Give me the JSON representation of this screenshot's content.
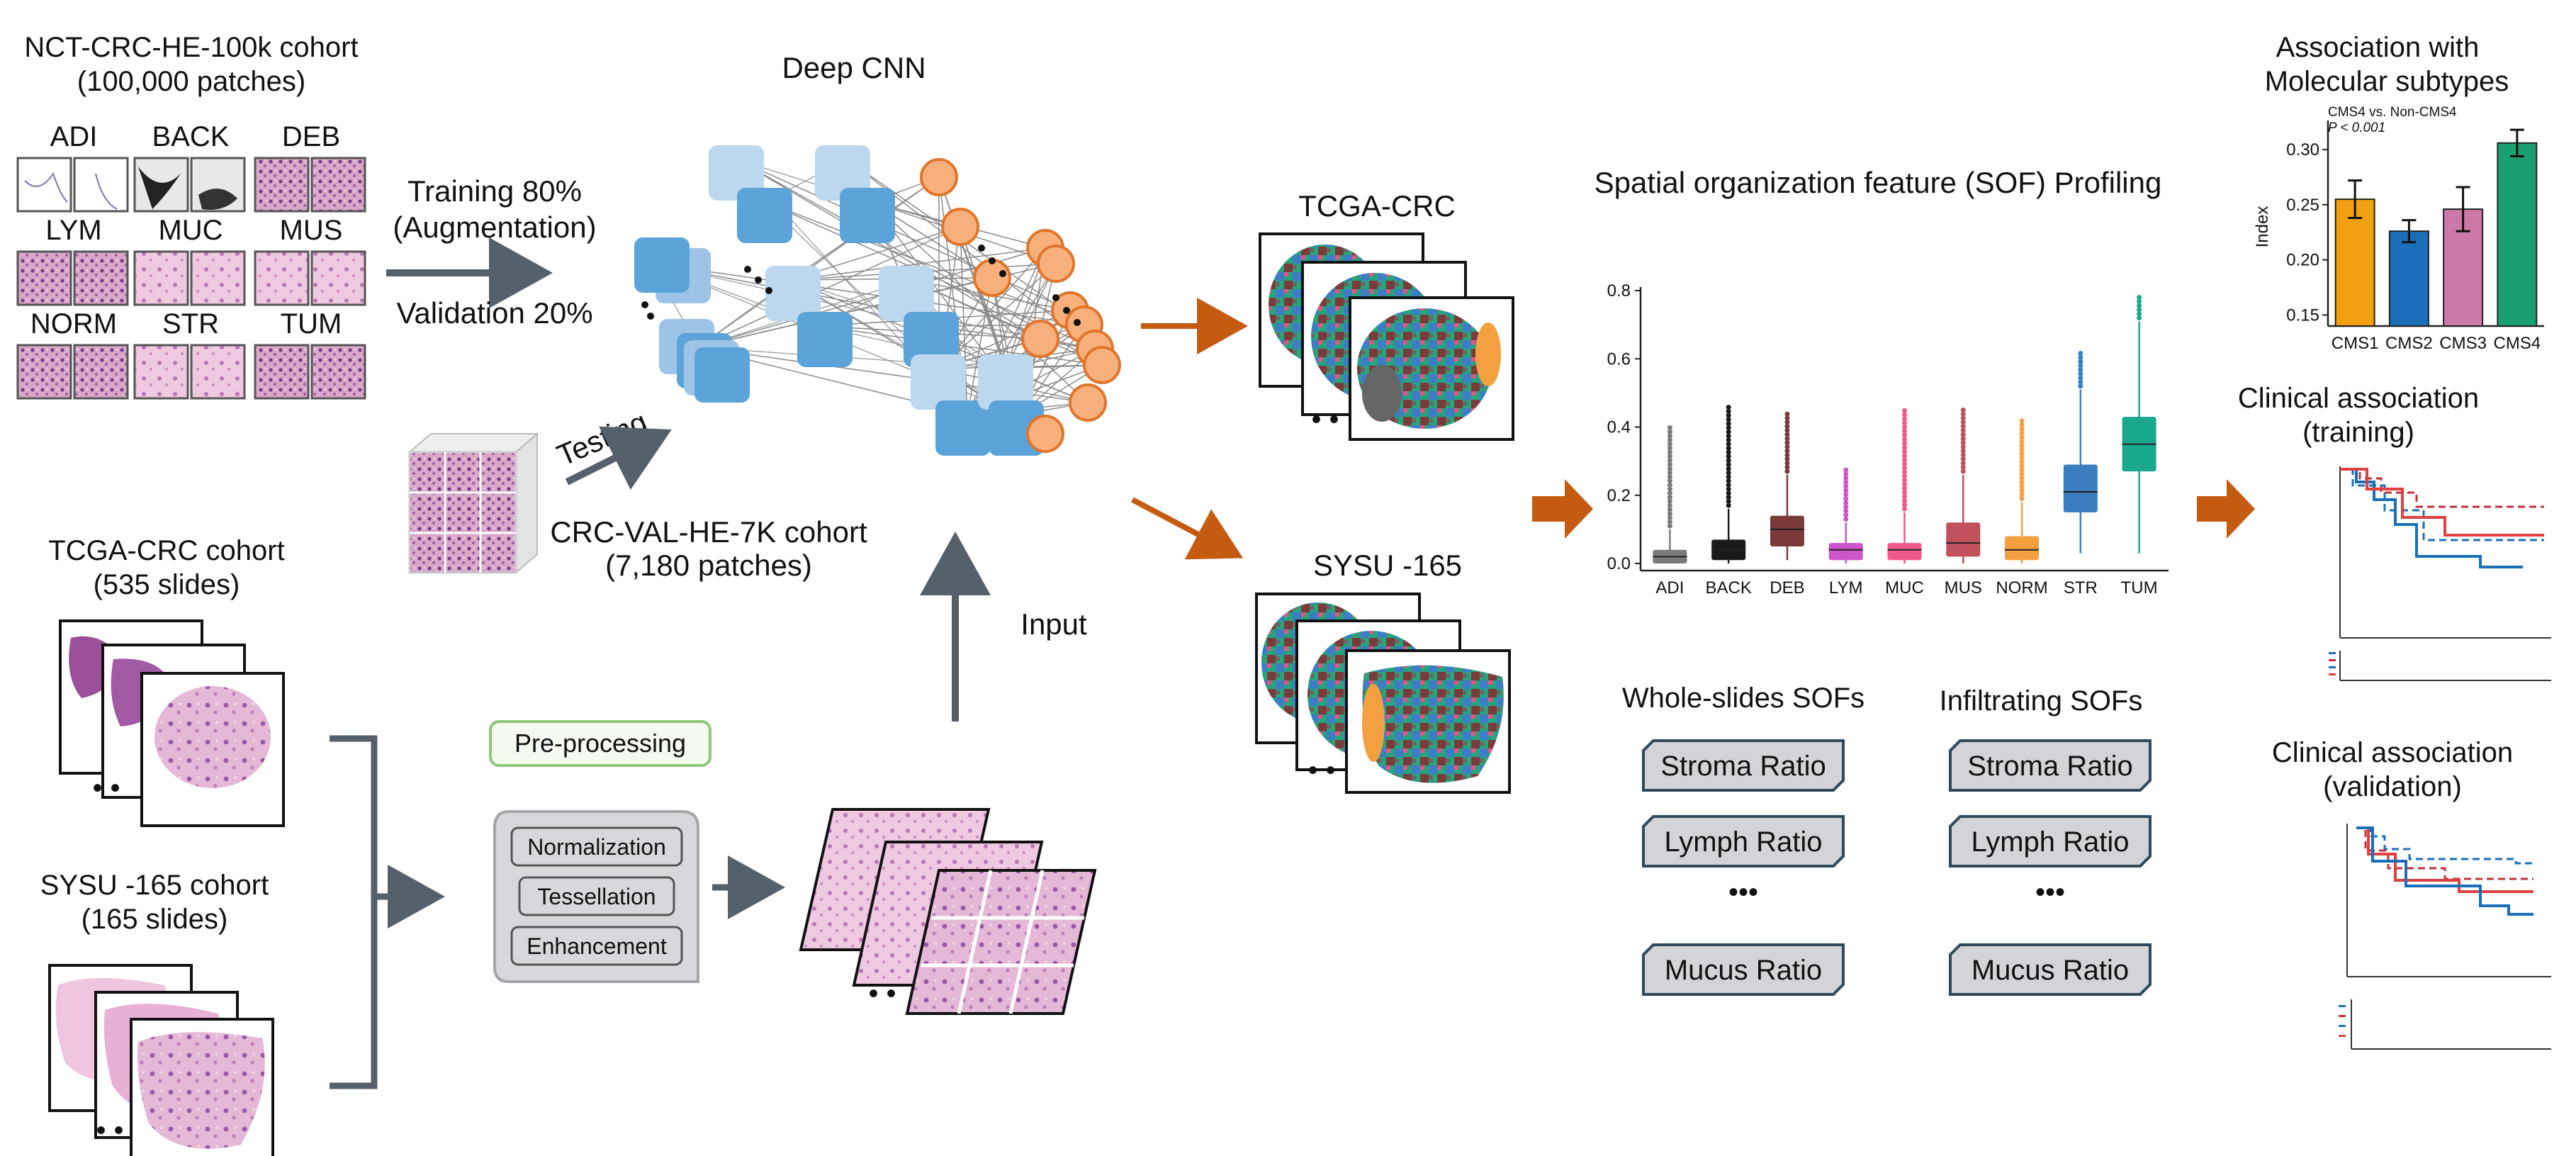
{
  "cohorts": {
    "nct": {
      "title": "NCT-CRC-HE-100k cohort",
      "subtitle": "(100,000 patches)"
    },
    "tcga": {
      "title": "TCGA-CRC cohort",
      "subtitle": "(535 slides)"
    },
    "sysu": {
      "title": "SYSU -165 cohort",
      "subtitle": "(165 slides)"
    },
    "val": {
      "title": "CRC-VAL-HE-7K cohort",
      "subtitle": "(7,180 patches)"
    }
  },
  "tissue_classes": [
    "ADI",
    "BACK",
    "DEB",
    "LYM",
    "MUC",
    "MUS",
    "NORM",
    "STR",
    "TUM"
  ],
  "training": {
    "line1": "Training 80%",
    "line2": "(Augmentation)",
    "line3": "Validation 20%"
  },
  "testing_label": "Testing",
  "cnn_title": "Deep CNN",
  "input_label": "Input",
  "preprocessing": {
    "label": "Pre-processing",
    "steps": [
      "Normalization",
      "Tessellation",
      "Enhancement"
    ]
  },
  "outputs": {
    "tcga": "TCGA-CRC",
    "sysu": "SYSU -165"
  },
  "sof": {
    "title": "Spatial organization feature (SOF) Profiling",
    "whole_title": "Whole-slides SOFs",
    "infil_title": "Infiltrating SOFs",
    "items": [
      "Stroma Ratio",
      "Lymph Ratio",
      "•••",
      "Mucus Ratio"
    ]
  },
  "right_titles": {
    "molecular_l1": "Association with",
    "molecular_l2": "Molecular subtypes",
    "training_l1": "Clinical association",
    "training_l2": "(training)",
    "validation_l1": "Clinical association",
    "validation_l2": "(validation)"
  },
  "chart_data": [
    {
      "type": "box",
      "categories": [
        "ADI",
        "BACK",
        "DEB",
        "LYM",
        "MUC",
        "MUS",
        "NORM",
        "STR",
        "TUM"
      ],
      "ylim": [
        0,
        0.8
      ],
      "yticks": [
        "0.0",
        "0.2",
        "0.4",
        "0.6",
        "0.8"
      ],
      "colors": [
        "#7a7a7a",
        "#1a1a1a",
        "#7a3a3a",
        "#cc55cc",
        "#ee5a8a",
        "#c0505a",
        "#f5a040",
        "#3a7ebf",
        "#1aa88a"
      ],
      "boxes": [
        {
          "min": 0.0,
          "q1": 0.0,
          "median": 0.02,
          "q3": 0.04,
          "max": 0.1,
          "outlier_top": 0.4
        },
        {
          "min": 0.0,
          "q1": 0.01,
          "median": 0.04,
          "q3": 0.07,
          "max": 0.16,
          "outlier_top": 0.46
        },
        {
          "min": 0.01,
          "q1": 0.05,
          "median": 0.1,
          "q3": 0.14,
          "max": 0.26,
          "outlier_top": 0.45
        },
        {
          "min": 0.0,
          "q1": 0.01,
          "median": 0.04,
          "q3": 0.06,
          "max": 0.12,
          "outlier_top": 0.28
        },
        {
          "min": 0.0,
          "q1": 0.01,
          "median": 0.04,
          "q3": 0.06,
          "max": 0.15,
          "outlier_top": 0.46
        },
        {
          "min": 0.0,
          "q1": 0.02,
          "median": 0.06,
          "q3": 0.12,
          "max": 0.26,
          "outlier_top": 0.46
        },
        {
          "min": 0.0,
          "q1": 0.01,
          "median": 0.04,
          "q3": 0.08,
          "max": 0.18,
          "outlier_top": 0.43
        },
        {
          "min": 0.03,
          "q1": 0.15,
          "median": 0.21,
          "q3": 0.29,
          "max": 0.51,
          "outlier_top": 0.62
        },
        {
          "min": 0.03,
          "q1": 0.27,
          "median": 0.35,
          "q3": 0.43,
          "max": 0.71,
          "outlier_top": 0.79
        }
      ]
    },
    {
      "type": "bar",
      "subtitle": "CMS4 vs. Non-CMS4",
      "pvalue": "P < 0.001",
      "ylabel": "Index",
      "ylim": [
        0.14,
        0.32
      ],
      "yticks": [
        "0.15",
        "0.20",
        "0.25",
        "0.30"
      ],
      "categories": [
        "CMS1",
        "CMS2",
        "CMS3",
        "CMS4"
      ],
      "values": [
        0.255,
        0.226,
        0.246,
        0.306
      ],
      "errors": [
        0.017,
        0.01,
        0.02,
        0.012
      ],
      "colors": [
        "#f0a010",
        "#1a6fb8",
        "#cc79a7",
        "#1aa070"
      ]
    }
  ]
}
